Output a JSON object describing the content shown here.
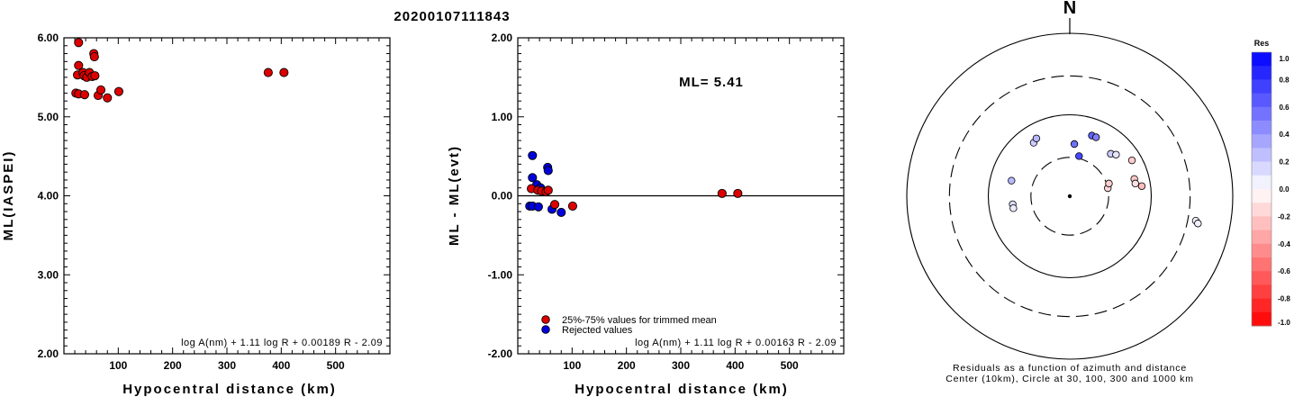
{
  "title": "20200107111843",
  "chart_data": [
    {
      "type": "scatter",
      "xlabel": "Hypocentral distance (km)",
      "ylabel": "ML(IASPEI)",
      "xlim": [
        0,
        600
      ],
      "ylim": [
        2.0,
        6.0
      ],
      "xticks": [
        "100",
        "200",
        "300",
        "400",
        "500"
      ],
      "yticks": [
        "2.00",
        "3.00",
        "4.00",
        "5.00",
        "6.00"
      ],
      "formula": "log A(nm) + 1.11 log R + 0.00189 R - 2.09",
      "points": [
        {
          "x": 27,
          "y": 5.94
        },
        {
          "x": 27,
          "y": 5.65
        },
        {
          "x": 25,
          "y": 5.53
        },
        {
          "x": 35,
          "y": 5.56
        },
        {
          "x": 37,
          "y": 5.52
        },
        {
          "x": 42,
          "y": 5.5
        },
        {
          "x": 47,
          "y": 5.56
        },
        {
          "x": 52,
          "y": 5.51
        },
        {
          "x": 57,
          "y": 5.52
        },
        {
          "x": 55,
          "y": 5.8
        },
        {
          "x": 56,
          "y": 5.76
        },
        {
          "x": 22,
          "y": 5.3
        },
        {
          "x": 27,
          "y": 5.29
        },
        {
          "x": 38,
          "y": 5.28
        },
        {
          "x": 63,
          "y": 5.27
        },
        {
          "x": 68,
          "y": 5.34
        },
        {
          "x": 80,
          "y": 5.24
        },
        {
          "x": 101,
          "y": 5.32
        },
        {
          "x": 376,
          "y": 5.56
        },
        {
          "x": 405,
          "y": 5.56
        }
      ]
    },
    {
      "type": "scatter",
      "xlabel": "Hypocentral distance (km)",
      "ylabel": "ML - ML(evt)",
      "xlim": [
        0,
        600
      ],
      "ylim": [
        -2.0,
        2.0
      ],
      "xticks": [
        "100",
        "200",
        "300",
        "400",
        "500"
      ],
      "yticks": [
        "-2.00",
        "-1.00",
        "0.00",
        "1.00",
        "2.00"
      ],
      "annotation": "ML= 5.41",
      "formula": "log A(nm) + 1.11 log R + 0.00163 R - 2.09",
      "legend": [
        "25%-75% values for trimmed mean",
        "Rejected values"
      ],
      "trimmed": [
        {
          "x": 25,
          "y": 0.09
        },
        {
          "x": 37,
          "y": 0.07
        },
        {
          "x": 44,
          "y": 0.06
        },
        {
          "x": 52,
          "y": 0.05
        },
        {
          "x": 56,
          "y": 0.07
        },
        {
          "x": 68,
          "y": -0.11
        },
        {
          "x": 101,
          "y": -0.13
        },
        {
          "x": 376,
          "y": 0.03
        },
        {
          "x": 405,
          "y": 0.03
        }
      ],
      "rejected": [
        {
          "x": 27,
          "y": 0.51
        },
        {
          "x": 27,
          "y": 0.23
        },
        {
          "x": 35,
          "y": 0.14
        },
        {
          "x": 42,
          "y": 0.1
        },
        {
          "x": 55,
          "y": 0.36
        },
        {
          "x": 56,
          "y": 0.32
        },
        {
          "x": 22,
          "y": -0.13
        },
        {
          "x": 27,
          "y": -0.13
        },
        {
          "x": 38,
          "y": -0.14
        },
        {
          "x": 63,
          "y": -0.17
        },
        {
          "x": 80,
          "y": -0.21
        }
      ]
    },
    {
      "type": "scatter",
      "subtype": "polar-residuals",
      "north_label": "N",
      "caption_line1": "Residuals as a function of azimuth and distance",
      "caption_line2": "Center (10km), Circle at 30, 100, 300 and 1000 km",
      "rings_km": [
        30,
        100,
        300,
        1000
      ],
      "ring_styles": [
        "dashed",
        "solid",
        "dashed",
        "solid"
      ],
      "colorbar": {
        "title": "Res",
        "range": [
          -1.0,
          1.0
        ],
        "ticks": [
          "1.0",
          "0.8",
          "0.6",
          "0.4",
          "0.2",
          "0.0",
          "-0.2",
          "-0.4",
          "-0.6",
          "-0.8",
          "-1.0"
        ]
      },
      "stations": [
        {
          "az": 326,
          "dist": 62,
          "res": 0.1
        },
        {
          "az": 330,
          "dist": 66,
          "res": 0.14
        },
        {
          "az": 5,
          "dist": 44,
          "res": 0.28
        },
        {
          "az": 13,
          "dist": 32,
          "res": 0.36
        },
        {
          "az": 20,
          "dist": 62,
          "res": 0.31
        },
        {
          "az": 24,
          "dist": 62,
          "res": 0.25
        },
        {
          "az": 44,
          "dist": 53,
          "res": 0.1
        },
        {
          "az": 48,
          "dist": 58,
          "res": 0.05
        },
        {
          "az": 60,
          "dist": 76,
          "res": -0.1
        },
        {
          "az": 75,
          "dist": 66,
          "res": -0.11
        },
        {
          "az": 79,
          "dist": 66,
          "res": -0.06
        },
        {
          "az": 82,
          "dist": 78,
          "res": -0.13
        },
        {
          "az": 78,
          "dist": 30,
          "res": -0.08
        },
        {
          "az": 72,
          "dist": 32,
          "res": -0.1
        },
        {
          "az": 285,
          "dist": 55,
          "res": 0.14
        },
        {
          "az": 262,
          "dist": 51,
          "res": 0.07
        },
        {
          "az": 258,
          "dist": 51,
          "res": 0.04
        },
        {
          "az": 101,
          "dist": 376,
          "res": 0.03
        },
        {
          "az": 102,
          "dist": 405,
          "res": 0.03
        }
      ]
    }
  ]
}
